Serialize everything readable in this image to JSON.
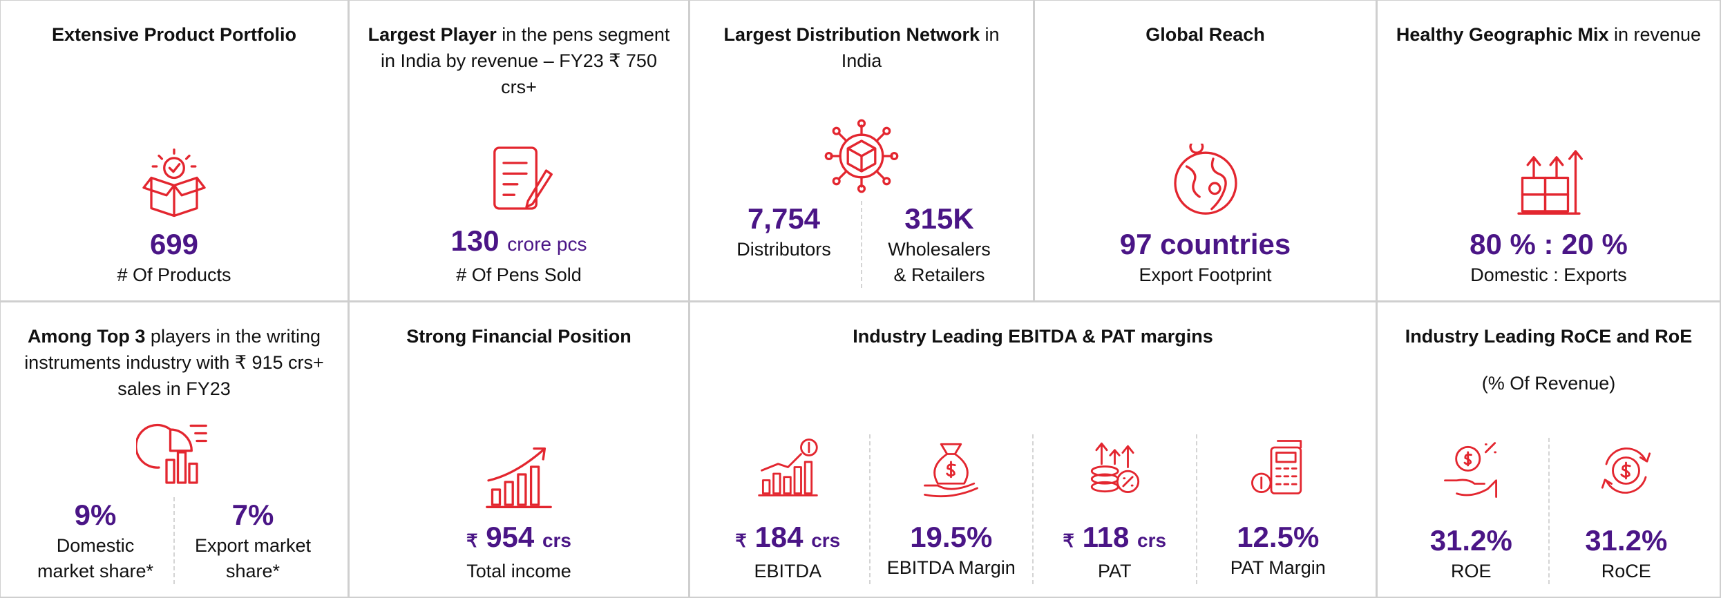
{
  "cells": [
    {
      "title": [
        {
          "text": "Extensive Product Portfolio",
          "bold": true
        }
      ],
      "stats": [
        {
          "value": "699",
          "label": [
            "# Of Products"
          ]
        }
      ]
    },
    {
      "title": [
        {
          "text": "Largest Player",
          "bold": true
        },
        {
          "text": " in the pens segment in India by revenue – FY23 ₹ 750 crs+"
        }
      ],
      "stats": [
        {
          "value": "130",
          "unit": "crore pcs",
          "label": [
            "# Of Pens Sold"
          ]
        }
      ]
    },
    {
      "title": [
        {
          "text": "Largest Distribution Network",
          "bold": true
        },
        {
          "text": " in India"
        }
      ],
      "stats": [
        {
          "value": "7,754",
          "label": [
            "Distributors"
          ]
        },
        {
          "value": "315K",
          "label": [
            "Wholesalers",
            "& Retailers"
          ]
        }
      ]
    },
    {
      "title": [
        {
          "text": "Global Reach",
          "bold": true
        }
      ],
      "stats": [
        {
          "value": "97 countries",
          "label": [
            "Export Footprint"
          ]
        }
      ]
    },
    {
      "title": [
        {
          "text": "Healthy Geographic Mix",
          "bold": true
        },
        {
          "text": " in revenue"
        }
      ],
      "stats": [
        {
          "value": "80 % : 20 %",
          "label": [
            "Domestic : Exports"
          ]
        }
      ]
    },
    {
      "title": [
        {
          "text": "Among Top 3",
          "bold": true
        },
        {
          "text": " players in the writing instruments industry with ₹ 915 crs+ sales in FY23"
        }
      ],
      "stats": [
        {
          "value": "9%",
          "label": [
            "Domestic",
            "market share*"
          ]
        },
        {
          "value": "7%",
          "label": [
            "Export market",
            "share*"
          ]
        }
      ]
    },
    {
      "title": [
        {
          "text": "Strong Financial Position",
          "bold": true
        }
      ],
      "stats": [
        {
          "prefix": "₹",
          "value": "954",
          "unit": "crs",
          "label": [
            "Total income"
          ]
        }
      ]
    },
    {
      "title": [
        {
          "text": "Industry Leading EBITDA & PAT margins",
          "bold": true
        }
      ],
      "stats": [
        {
          "prefix": "₹",
          "value": "184",
          "unit": "crs",
          "label": [
            "EBITDA"
          ]
        },
        {
          "value": "19.5%",
          "label": [
            "EBITDA  Margin"
          ]
        },
        {
          "prefix": "₹",
          "value": "118",
          "unit": "crs",
          "label": [
            "PAT"
          ]
        },
        {
          "value": "12.5%",
          "label": [
            "PAT Margin"
          ]
        }
      ]
    },
    {
      "title": [
        {
          "text": "Industry Leading RoCE and RoE",
          "bold": true
        }
      ],
      "subtitle": "(% Of Revenue)",
      "stats": [
        {
          "value": "31.2%",
          "label": [
            "ROE"
          ]
        },
        {
          "value": "31.2%",
          "label": [
            "RoCE"
          ]
        }
      ]
    }
  ]
}
